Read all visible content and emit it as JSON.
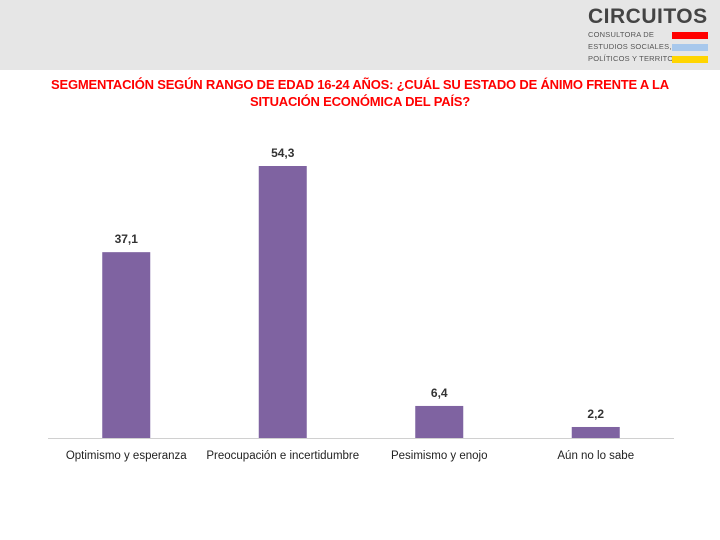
{
  "logo": {
    "brand": "CIRCUITOS",
    "lines": [
      "CONSULTORA DE",
      "ESTUDIOS SOCIALES,",
      "POLÍTICOS Y TERRITORIALES"
    ],
    "bar_colors": [
      "#ff0000",
      "#a8c8ec",
      "#ffd500"
    ]
  },
  "colors": {
    "bar": "#7f63a1",
    "title": "#ff0000",
    "header_band": "#e6e6e6"
  },
  "chart_data": {
    "type": "bar",
    "title": "SEGMENTACIÓN SEGÚN RANGO DE EDAD 16-24 AÑOS: ¿CUÁL SU ESTADO DE ÁNIMO FRENTE A LA SITUACIÓN ECONÓMICA DEL PAÍS?",
    "categories": [
      "Optimismo y esperanza",
      "Preocupación e incertidumbre",
      "Pesimismo y enojo",
      "Aún no lo sabe"
    ],
    "values": [
      37.1,
      54.3,
      6.4,
      2.2
    ],
    "value_labels": [
      "37,1",
      "54,3",
      "6,4",
      "2,2"
    ],
    "xlabel": "",
    "ylabel": "",
    "ylim": [
      0,
      54.3
    ],
    "grid": false,
    "legend": "none"
  }
}
